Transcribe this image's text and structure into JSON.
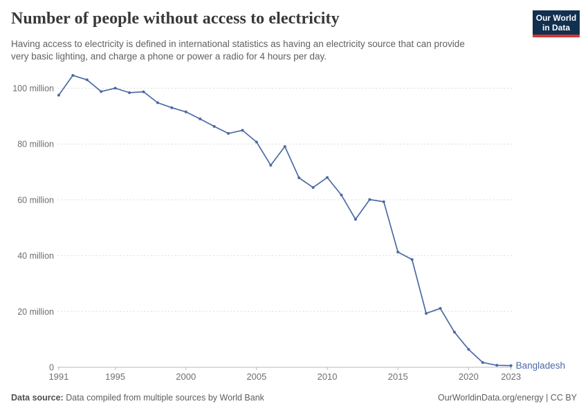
{
  "header": {
    "title": "Number of people without access to electricity",
    "subtitle_lines": [
      "Having access to electricity is defined in international statistics as having an electricity source that can provide",
      "very basic lighting, and charge a phone or power a radio for 4 hours per day."
    ],
    "logo_line1": "Our World",
    "logo_line2": "in Data",
    "logo_bg_color": "#12304f",
    "logo_stripe_color": "#d13a34"
  },
  "footer": {
    "source_label": "Data source:",
    "source_text": "Data compiled from multiple sources by World Bank",
    "right_text": "OurWorldinData.org/energy | CC BY"
  },
  "chart_data": {
    "type": "line",
    "title": "Number of people without access to electricity",
    "xlabel": "",
    "ylabel": "",
    "unit": "people (millions)",
    "grid": "horizontal-dashed",
    "legend_position": "end-of-line-label",
    "xlim": [
      1991,
      2023
    ],
    "ylim": [
      0,
      110
    ],
    "x": [
      1991,
      1992,
      1993,
      1994,
      1995,
      1996,
      1997,
      1998,
      1999,
      2000,
      2001,
      2002,
      2003,
      2004,
      2005,
      2006,
      2007,
      2008,
      2009,
      2010,
      2011,
      2012,
      2013,
      2014,
      2015,
      2016,
      2017,
      2018,
      2019,
      2020,
      2021,
      2022,
      2023
    ],
    "series": [
      {
        "name": "Bangladesh",
        "color": "#4b69a4",
        "values_million": [
          97.5,
          104.6,
          103.0,
          98.8,
          100.0,
          98.4,
          98.7,
          94.8,
          93.0,
          91.5,
          89.0,
          86.3,
          83.8,
          84.9,
          80.7,
          72.4,
          79.1,
          67.9,
          64.4,
          68.0,
          61.7,
          53.0,
          60.1,
          59.3,
          41.3,
          38.6,
          19.3,
          21.1,
          12.6,
          6.4,
          1.7,
          0.7,
          0.6
        ]
      }
    ],
    "x_axis": {
      "ticks": [
        1991,
        1995,
        2000,
        2005,
        2010,
        2015,
        2020,
        2023
      ]
    },
    "y_axis": {
      "ticks": [
        {
          "value": 0,
          "label": "0"
        },
        {
          "value": 20,
          "label": "20 million"
        },
        {
          "value": 40,
          "label": "40 million"
        },
        {
          "value": 60,
          "label": "60 million"
        },
        {
          "value": 80,
          "label": "80 million"
        },
        {
          "value": 100,
          "label": "100 million"
        }
      ]
    }
  }
}
